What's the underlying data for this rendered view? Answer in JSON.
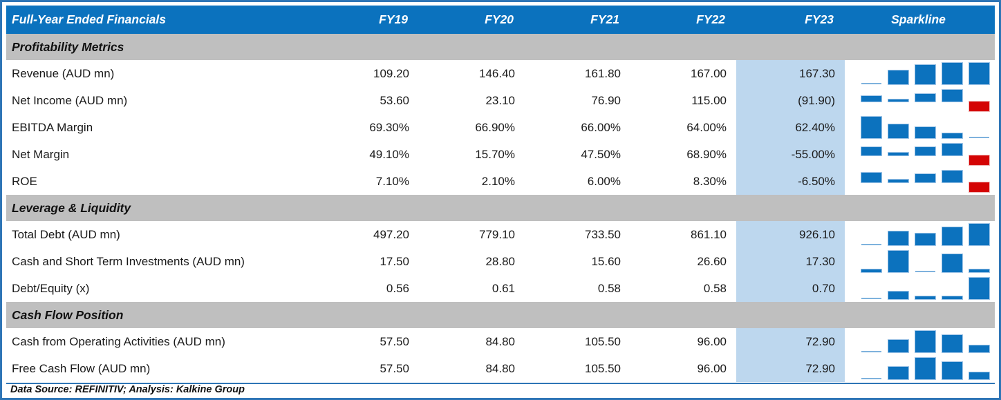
{
  "header": {
    "title": "Full-Year Ended Financials",
    "sparkline_label": "Sparkline"
  },
  "footer": {
    "text": "Data Source: REFINITIV; Analysis: Kalkine Group"
  },
  "colors": {
    "header_bg": "#0B72BE",
    "header_text": "#ffffff",
    "section_bg": "#BFBFBF",
    "fy23_highlight_bg": "#BDD7EE",
    "sparkline_positive": "#0C72BE",
    "sparkline_negative": "#D40404",
    "sparkline_min_bar": "#7EB2DD",
    "outer_border": "#2E75B6"
  },
  "chart_data": {
    "type": "table",
    "title": "Full-Year Ended Financials",
    "columns": [
      "FY19",
      "FY20",
      "FY21",
      "FY22",
      "FY23"
    ],
    "sparkline_column": "Sparkline",
    "highlighted_column": "FY23",
    "sections": [
      {
        "title": "Profitability Metrics",
        "rows": [
          {
            "label": "Revenue (AUD mn)",
            "display": [
              "109.20",
              "146.40",
              "161.80",
              "167.00",
              "167.30"
            ],
            "values": [
              109.2,
              146.4,
              161.8,
              167.0,
              167.3
            ]
          },
          {
            "label": "Net Income (AUD mn)",
            "display": [
              "53.60",
              "23.10",
              "76.90",
              "115.00",
              "(91.90)"
            ],
            "values": [
              53.6,
              23.1,
              76.9,
              115.0,
              -91.9
            ]
          },
          {
            "label": "EBITDA Margin",
            "display": [
              "69.30%",
              "66.90%",
              "66.00%",
              "64.00%",
              "62.40%"
            ],
            "values": [
              69.3,
              66.9,
              66.0,
              64.0,
              62.4
            ]
          },
          {
            "label": "Net Margin",
            "display": [
              "49.10%",
              "15.70%",
              "47.50%",
              "68.90%",
              "-55.00%"
            ],
            "values": [
              49.1,
              15.7,
              47.5,
              68.9,
              -55.0
            ]
          },
          {
            "label": "ROE",
            "display": [
              "7.10%",
              "2.10%",
              "6.00%",
              "8.30%",
              "-6.50%"
            ],
            "values": [
              7.1,
              2.1,
              6.0,
              8.3,
              -6.5
            ]
          }
        ]
      },
      {
        "title": "Leverage & Liquidity",
        "rows": [
          {
            "label": "Total Debt (AUD mn)",
            "display": [
              "497.20",
              "779.10",
              "733.50",
              "861.10",
              "926.10"
            ],
            "values": [
              497.2,
              779.1,
              733.5,
              861.1,
              926.1
            ]
          },
          {
            "label": "Cash and Short Term Investments (AUD mn)",
            "display": [
              "17.50",
              "28.80",
              "15.60",
              "26.60",
              "17.30"
            ],
            "values": [
              17.5,
              28.8,
              15.6,
              26.6,
              17.3
            ]
          },
          {
            "label": "Debt/Equity (x)",
            "display": [
              "0.56",
              "0.61",
              "0.58",
              "0.58",
              "0.70"
            ],
            "values": [
              0.56,
              0.61,
              0.58,
              0.58,
              0.7
            ]
          }
        ]
      },
      {
        "title": "Cash Flow Position",
        "rows": [
          {
            "label": "Cash from Operating Activities (AUD mn)",
            "display": [
              "57.50",
              "84.80",
              "105.50",
              "96.00",
              "72.90"
            ],
            "values": [
              57.5,
              84.8,
              105.5,
              96.0,
              72.9
            ]
          },
          {
            "label": "Free Cash Flow (AUD mn)",
            "display": [
              "57.50",
              "84.80",
              "105.50",
              "96.00",
              "72.90"
            ],
            "values": [
              57.5,
              84.8,
              105.5,
              96.0,
              72.9
            ]
          }
        ]
      }
    ]
  }
}
